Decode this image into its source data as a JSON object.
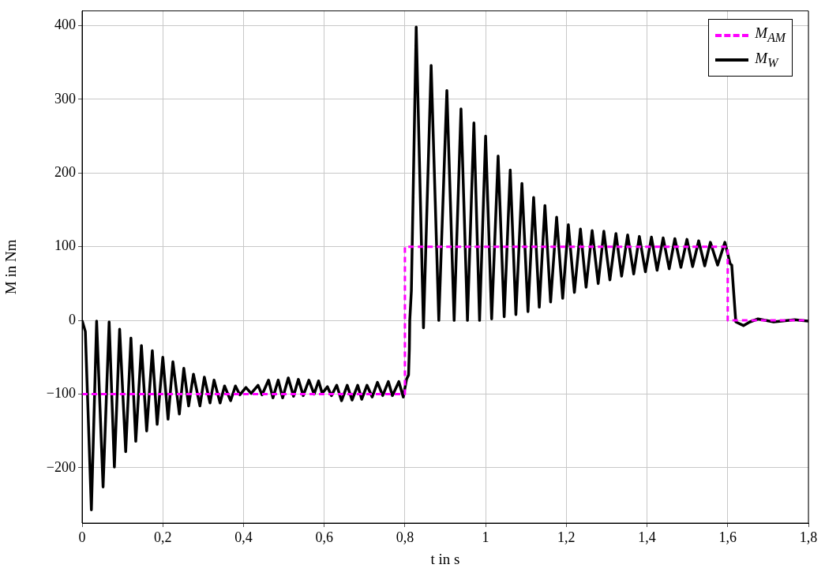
{
  "chart_data": {
    "type": "line",
    "xlabel": "t in s",
    "ylabel": "M in Nm",
    "xlim": [
      0,
      1.8
    ],
    "ylim": [
      -275,
      420
    ],
    "xticks": [
      0,
      {
        "value": 0.2,
        "label": "0,2"
      },
      {
        "value": 0.4,
        "label": "0,4"
      },
      {
        "value": 0.6,
        "label": "0,6"
      },
      {
        "value": 0.8,
        "label": "0,8"
      },
      1,
      {
        "value": 1.2,
        "label": "1,2"
      },
      {
        "value": 1.4,
        "label": "1,4"
      },
      {
        "value": 1.6,
        "label": "1,6"
      },
      {
        "value": 1.8,
        "label": "1,8"
      }
    ],
    "yticks": [
      {
        "value": -200,
        "label": "−200"
      },
      {
        "value": -100,
        "label": "−100"
      },
      0,
      100,
      200,
      300,
      400
    ],
    "grid": true,
    "legend": "top right",
    "marker": "none",
    "series": [
      {
        "name": "M$_{AM}$",
        "type": "step",
        "color": "#ff00ff",
        "line_style": "dashed",
        "x": [
          0,
          0.8,
          1.6,
          1.8
        ],
        "values": [
          -100,
          100,
          0,
          0
        ]
      },
      {
        "name": "M$_{W}$",
        "type": "line",
        "color": "#000000",
        "line_style": "solid",
        "x": [
          0,
          0.008,
          0.023,
          0.036,
          0.052,
          0.067,
          0.08,
          0.093,
          0.108,
          0.121,
          0.133,
          0.147,
          0.16,
          0.174,
          0.186,
          0.2,
          0.213,
          0.225,
          0.241,
          0.252,
          0.264,
          0.276,
          0.292,
          0.303,
          0.317,
          0.327,
          0.342,
          0.353,
          0.368,
          0.38,
          0.391,
          0.406,
          0.419,
          0.436,
          0.446,
          0.462,
          0.473,
          0.486,
          0.497,
          0.511,
          0.524,
          0.536,
          0.548,
          0.562,
          0.575,
          0.586,
          0.595,
          0.608,
          0.618,
          0.631,
          0.643,
          0.657,
          0.669,
          0.683,
          0.693,
          0.706,
          0.719,
          0.732,
          0.745,
          0.759,
          0.769,
          0.785,
          0.796,
          0.804,
          0.809,
          0.811,
          0.812,
          0.816,
          0.828,
          0.846,
          0.865,
          0.884,
          0.904,
          0.922,
          0.939,
          0.955,
          0.971,
          0.985,
          1.0,
          1.015,
          1.031,
          1.046,
          1.061,
          1.075,
          1.09,
          1.105,
          1.119,
          1.133,
          1.147,
          1.161,
          1.176,
          1.191,
          1.205,
          1.22,
          1.235,
          1.249,
          1.264,
          1.279,
          1.293,
          1.308,
          1.323,
          1.337,
          1.352,
          1.367,
          1.381,
          1.396,
          1.411,
          1.425,
          1.44,
          1.455,
          1.469,
          1.484,
          1.499,
          1.513,
          1.528,
          1.543,
          1.557,
          1.575,
          1.593,
          1.606,
          1.61,
          1.62,
          1.639,
          1.655,
          1.675,
          1.714,
          1.766,
          1.8
        ],
        "values": [
          0,
          -15,
          -257,
          -1,
          -226,
          -2,
          -199,
          -12,
          -178,
          -24,
          -164,
          -34,
          -150,
          -41,
          -141,
          -50,
          -134,
          -56,
          -127,
          -65,
          -116,
          -73,
          -116,
          -77,
          -112,
          -81,
          -112,
          -89,
          -109,
          -89,
          -101,
          -91,
          -99,
          -88,
          -101,
          -81,
          -105,
          -81,
          -105,
          -78,
          -103,
          -80,
          -102,
          -81,
          -100,
          -82,
          -99,
          -90,
          -102,
          -88,
          -109,
          -88,
          -108,
          -88,
          -107,
          -88,
          -104,
          -84,
          -102,
          -83,
          -102,
          -83,
          -104,
          -80,
          -74,
          -39,
          0,
          40,
          398,
          -10,
          346,
          0,
          312,
          0,
          287,
          0,
          268,
          0,
          250,
          2,
          223,
          5,
          204,
          8,
          186,
          12,
          167,
          18,
          156,
          25,
          140,
          30,
          130,
          38,
          124,
          45,
          122,
          50,
          121,
          55,
          118,
          60,
          116,
          63,
          114,
          66,
          113,
          68,
          112,
          70,
          111,
          72,
          110,
          73,
          108,
          74,
          106,
          75,
          106,
          77,
          75,
          -2,
          -7,
          -2,
          2,
          -2,
          1,
          -1
        ]
      }
    ]
  }
}
